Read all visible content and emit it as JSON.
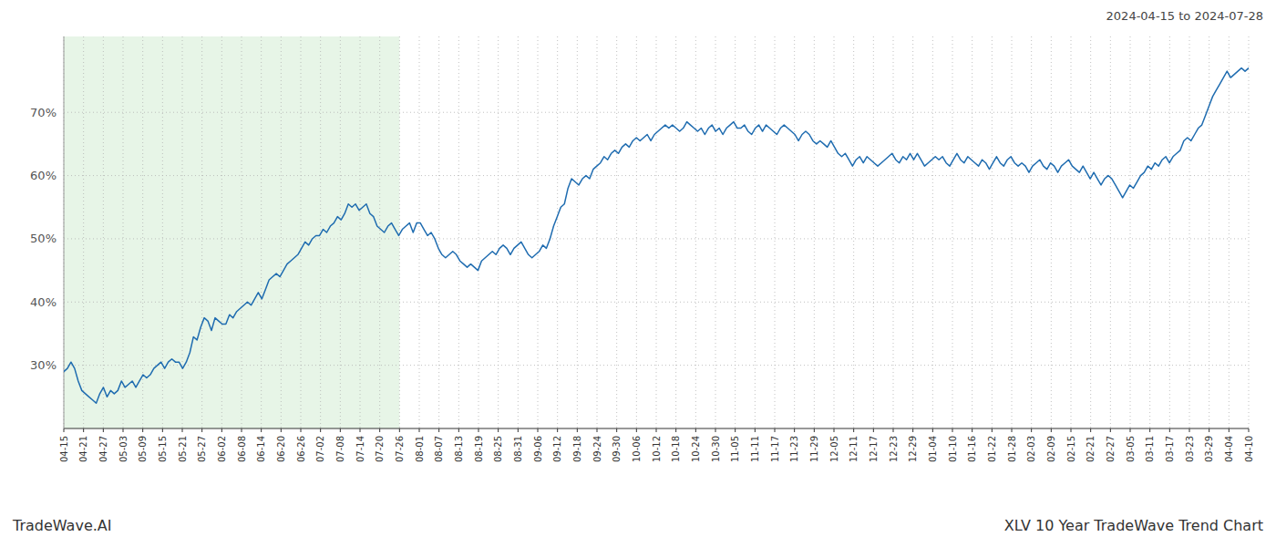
{
  "chart_data": {
    "type": "line",
    "title": "XLV 10 Year TradeWave Trend Chart",
    "subtitle": "2024-04-15 to 2024-07-28",
    "annotations": [
      "TradeWave.AI"
    ],
    "color": "#1f6cb0",
    "grid": true,
    "xlim": [
      0,
      329
    ],
    "xticks": [
      {
        "value": 0,
        "label": "04-15"
      },
      {
        "value": 5.4833,
        "label": "04-21"
      },
      {
        "value": 10.9667,
        "label": "04-27"
      },
      {
        "value": 16.45,
        "label": "05-03"
      },
      {
        "value": 21.9333,
        "label": "05-09"
      },
      {
        "value": 27.4167,
        "label": "05-15"
      },
      {
        "value": 32.9,
        "label": "05-21"
      },
      {
        "value": 38.3833,
        "label": "05-27"
      },
      {
        "value": 43.8667,
        "label": "06-02"
      },
      {
        "value": 49.35,
        "label": "06-08"
      },
      {
        "value": 54.8333,
        "label": "06-14"
      },
      {
        "value": 60.3167,
        "label": "06-20"
      },
      {
        "value": 65.8,
        "label": "06-26"
      },
      {
        "value": 71.2833,
        "label": "07-02"
      },
      {
        "value": 76.7667,
        "label": "07-08"
      },
      {
        "value": 82.25,
        "label": "07-14"
      },
      {
        "value": 87.7333,
        "label": "07-20"
      },
      {
        "value": 93.2167,
        "label": "07-26"
      },
      {
        "value": 98.7,
        "label": "08-01"
      },
      {
        "value": 104.1833,
        "label": "08-07"
      },
      {
        "value": 109.6667,
        "label": "08-13"
      },
      {
        "value": 115.15,
        "label": "08-19"
      },
      {
        "value": 120.6333,
        "label": "08-25"
      },
      {
        "value": 126.1167,
        "label": "08-31"
      },
      {
        "value": 131.6,
        "label": "09-06"
      },
      {
        "value": 137.0833,
        "label": "09-12"
      },
      {
        "value": 142.5667,
        "label": "09-18"
      },
      {
        "value": 148.05,
        "label": "09-24"
      },
      {
        "value": 153.5333,
        "label": "09-30"
      },
      {
        "value": 159.0167,
        "label": "10-06"
      },
      {
        "value": 164.5,
        "label": "10-12"
      },
      {
        "value": 169.9833,
        "label": "10-18"
      },
      {
        "value": 175.4667,
        "label": "10-24"
      },
      {
        "value": 180.95,
        "label": "10-30"
      },
      {
        "value": 186.4333,
        "label": "11-05"
      },
      {
        "value": 191.9167,
        "label": "11-11"
      },
      {
        "value": 197.4,
        "label": "11-17"
      },
      {
        "value": 202.8833,
        "label": "11-23"
      },
      {
        "value": 208.3667,
        "label": "11-29"
      },
      {
        "value": 213.85,
        "label": "12-05"
      },
      {
        "value": 219.3333,
        "label": "12-11"
      },
      {
        "value": 224.8167,
        "label": "12-17"
      },
      {
        "value": 230.3,
        "label": "12-23"
      },
      {
        "value": 235.7833,
        "label": "12-29"
      },
      {
        "value": 241.2667,
        "label": "01-04"
      },
      {
        "value": 246.75,
        "label": "01-10"
      },
      {
        "value": 252.2333,
        "label": "01-16"
      },
      {
        "value": 257.7167,
        "label": "01-22"
      },
      {
        "value": 263.2,
        "label": "01-28"
      },
      {
        "value": 268.6833,
        "label": "02-03"
      },
      {
        "value": 274.1667,
        "label": "02-09"
      },
      {
        "value": 279.65,
        "label": "02-15"
      },
      {
        "value": 285.1333,
        "label": "02-21"
      },
      {
        "value": 290.6167,
        "label": "02-27"
      },
      {
        "value": 296.1,
        "label": "03-05"
      },
      {
        "value": 301.5833,
        "label": "03-11"
      },
      {
        "value": 307.0667,
        "label": "03-17"
      },
      {
        "value": 312.55,
        "label": "03-23"
      },
      {
        "value": 318.0333,
        "label": "03-29"
      },
      {
        "value": 323.5167,
        "label": "04-04"
      },
      {
        "value": 329,
        "label": "04-10"
      }
    ],
    "shaded_range": [
      0,
      93.2167
    ],
    "ylim": [
      20,
      82
    ],
    "yticks": [
      {
        "value": 30,
        "label": "30%"
      },
      {
        "value": 40,
        "label": "40%"
      },
      {
        "value": 50,
        "label": "50%"
      },
      {
        "value": 60,
        "label": "60%"
      },
      {
        "value": 70,
        "label": "70%"
      }
    ],
    "values": [
      29.0,
      29.5,
      30.5,
      29.5,
      27.5,
      26.0,
      25.5,
      25.0,
      24.5,
      24.0,
      25.5,
      26.5,
      25.0,
      26.0,
      25.5,
      26.0,
      27.5,
      26.5,
      27.0,
      27.5,
      26.5,
      27.5,
      28.5,
      28.0,
      28.5,
      29.5,
      30.0,
      30.5,
      29.5,
      30.5,
      31.0,
      30.5,
      30.5,
      29.5,
      30.5,
      32.0,
      34.5,
      34.0,
      36.0,
      37.5,
      37.0,
      35.5,
      37.5,
      37.0,
      36.5,
      36.5,
      38.0,
      37.5,
      38.5,
      39.0,
      39.5,
      40.0,
      39.5,
      40.5,
      41.5,
      40.5,
      42.0,
      43.5,
      44.0,
      44.5,
      44.0,
      45.0,
      46.0,
      46.5,
      47.0,
      47.5,
      48.5,
      49.5,
      49.0,
      50.0,
      50.5,
      50.5,
      51.5,
      51.0,
      52.0,
      52.5,
      53.5,
      53.0,
      54.0,
      55.5,
      55.0,
      55.5,
      54.5,
      55.0,
      55.5,
      54.0,
      53.5,
      52.0,
      51.5,
      51.0,
      52.0,
      52.5,
      51.5,
      50.5,
      51.5,
      52.0,
      52.5,
      51.0,
      52.5,
      52.5,
      51.5,
      50.5,
      51.0,
      50.0,
      48.5,
      47.5,
      47.0,
      47.5,
      48.0,
      47.5,
      46.5,
      46.0,
      45.5,
      46.0,
      45.5,
      45.0,
      46.5,
      47.0,
      47.5,
      48.0,
      47.5,
      48.5,
      49.0,
      48.5,
      47.5,
      48.5,
      49.0,
      49.5,
      48.5,
      47.5,
      47.0,
      47.5,
      48.0,
      49.0,
      48.5,
      50.0,
      52.0,
      53.5,
      55.0,
      55.5,
      58.0,
      59.5,
      59.0,
      58.5,
      59.5,
      60.0,
      59.5,
      61.0,
      61.5,
      62.0,
      63.0,
      62.5,
      63.5,
      64.0,
      63.5,
      64.5,
      65.0,
      64.5,
      65.5,
      66.0,
      65.5,
      66.0,
      66.5,
      65.5,
      66.5,
      67.0,
      67.5,
      68.0,
      67.5,
      68.0,
      67.5,
      67.0,
      67.5,
      68.5,
      68.0,
      67.5,
      67.0,
      67.5,
      66.5,
      67.5,
      68.0,
      67.0,
      67.5,
      66.5,
      67.5,
      68.0,
      68.5,
      67.5,
      67.5,
      68.0,
      67.0,
      66.5,
      67.5,
      68.0,
      67.0,
      68.0,
      67.5,
      67.0,
      66.5,
      67.5,
      68.0,
      67.5,
      67.0,
      66.5,
      65.5,
      66.5,
      67.0,
      66.5,
      65.5,
      65.0,
      65.5,
      65.0,
      64.5,
      65.5,
      64.5,
      63.5,
      63.0,
      63.5,
      62.5,
      61.5,
      62.5,
      63.0,
      62.0,
      63.0,
      62.5,
      62.0,
      61.5,
      62.0,
      62.5,
      63.0,
      63.5,
      62.5,
      62.0,
      63.0,
      62.5,
      63.5,
      62.5,
      63.5,
      62.5,
      61.5,
      62.0,
      62.5,
      63.0,
      62.5,
      63.0,
      62.0,
      61.5,
      62.5,
      63.5,
      62.5,
      62.0,
      63.0,
      62.5,
      62.0,
      61.5,
      62.5,
      62.0,
      61.0,
      62.0,
      63.0,
      62.0,
      61.5,
      62.5,
      63.0,
      62.0,
      61.5,
      62.0,
      61.5,
      60.5,
      61.5,
      62.0,
      62.5,
      61.5,
      61.0,
      62.0,
      61.5,
      60.5,
      61.5,
      62.0,
      62.5,
      61.5,
      61.0,
      60.5,
      61.5,
      60.5,
      59.5,
      60.5,
      59.5,
      58.5,
      59.5,
      60.0,
      59.5,
      58.5,
      57.5,
      56.5,
      57.5,
      58.5,
      58.0,
      59.0,
      60.0,
      60.5,
      61.5,
      61.0,
      62.0,
      61.5,
      62.5,
      63.0,
      62.0,
      63.0,
      63.5,
      64.0,
      65.5,
      66.0,
      65.5,
      66.5,
      67.5,
      68.0,
      69.5,
      71.0,
      72.5,
      73.5,
      74.5,
      75.5,
      76.5,
      75.5,
      76.0,
      76.5,
      77.0,
      76.5,
      77.0
    ]
  }
}
